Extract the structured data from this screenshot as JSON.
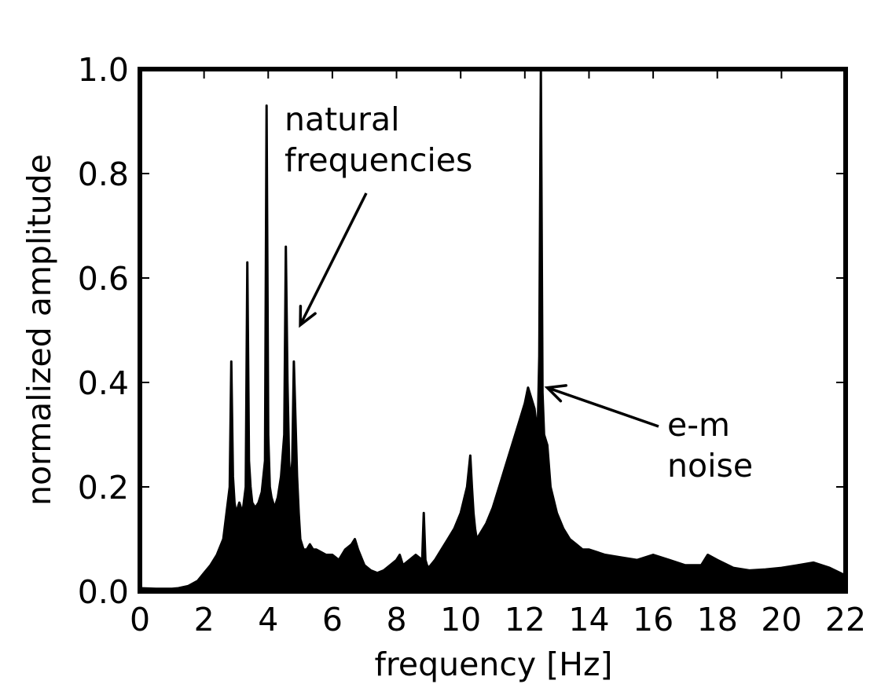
{
  "chart_data": {
    "type": "line",
    "title": "",
    "xlabel": "frequency [Hz]",
    "ylabel": "normalized amplitude",
    "xlim": [
      0,
      22
    ],
    "ylim": [
      0.0,
      1.0
    ],
    "grid": false,
    "xticks": [
      0,
      2,
      4,
      6,
      8,
      10,
      12,
      14,
      16,
      18,
      20,
      22
    ],
    "xtick_labels": [
      "0",
      "2",
      "4",
      "6",
      "8",
      "10",
      "12",
      "14",
      "16",
      "18",
      "20",
      "22"
    ],
    "yticks": [
      0.0,
      0.2,
      0.4,
      0.6,
      0.8,
      1.0
    ],
    "ytick_labels": [
      "0.0",
      "0.2",
      "0.4",
      "0.6",
      "0.8",
      "1.0"
    ],
    "series": [
      {
        "color": "#000000",
        "fill": true,
        "x": [
          0,
          0.5,
          1.0,
          1.2,
          1.5,
          1.8,
          2.0,
          2.2,
          2.4,
          2.6,
          2.7,
          2.8,
          2.85,
          2.9,
          2.95,
          3.0,
          3.1,
          3.2,
          3.3,
          3.35,
          3.4,
          3.45,
          3.5,
          3.6,
          3.7,
          3.8,
          3.9,
          3.95,
          4.0,
          4.05,
          4.1,
          4.2,
          4.3,
          4.4,
          4.5,
          4.55,
          4.6,
          4.65,
          4.7,
          4.75,
          4.8,
          4.9,
          4.95,
          5.0,
          5.05,
          5.1,
          5.2,
          5.3,
          5.4,
          5.5,
          5.8,
          6.0,
          6.2,
          6.4,
          6.6,
          6.7,
          6.8,
          7.0,
          7.2,
          7.4,
          7.6,
          7.8,
          8.0,
          8.1,
          8.2,
          8.4,
          8.6,
          8.8,
          8.85,
          8.9,
          8.95,
          9.0,
          9.2,
          9.4,
          9.6,
          9.8,
          10.0,
          10.2,
          10.3,
          10.35,
          10.4,
          10.45,
          10.5,
          10.6,
          10.8,
          11.0,
          11.2,
          11.4,
          11.6,
          11.8,
          12.0,
          12.1,
          12.2,
          12.3,
          12.4,
          12.45,
          12.5,
          12.55,
          12.6,
          12.7,
          12.8,
          13.0,
          13.2,
          13.4,
          13.6,
          13.8,
          14.0,
          14.5,
          15.0,
          15.5,
          16.0,
          16.5,
          17.0,
          17.5,
          17.7,
          18.0,
          18.5,
          19.0,
          19.5,
          20.0,
          20.5,
          21.0,
          21.5,
          22.0
        ],
        "y": [
          0.006,
          0.005,
          0.005,
          0.006,
          0.01,
          0.02,
          0.035,
          0.05,
          0.07,
          0.1,
          0.15,
          0.2,
          0.44,
          0.22,
          0.17,
          0.15,
          0.17,
          0.15,
          0.2,
          0.63,
          0.25,
          0.2,
          0.17,
          0.16,
          0.17,
          0.19,
          0.25,
          0.93,
          0.3,
          0.2,
          0.18,
          0.16,
          0.18,
          0.22,
          0.3,
          0.66,
          0.4,
          0.25,
          0.2,
          0.25,
          0.44,
          0.22,
          0.15,
          0.1,
          0.09,
          0.08,
          0.08,
          0.09,
          0.08,
          0.08,
          0.07,
          0.07,
          0.06,
          0.08,
          0.09,
          0.1,
          0.08,
          0.05,
          0.04,
          0.035,
          0.04,
          0.05,
          0.06,
          0.07,
          0.05,
          0.06,
          0.07,
          0.06,
          0.15,
          0.06,
          0.05,
          0.045,
          0.06,
          0.08,
          0.1,
          0.12,
          0.15,
          0.2,
          0.26,
          0.2,
          0.15,
          0.12,
          0.1,
          0.11,
          0.13,
          0.16,
          0.2,
          0.24,
          0.28,
          0.32,
          0.36,
          0.39,
          0.37,
          0.35,
          0.3,
          0.45,
          1.0,
          0.38,
          0.3,
          0.28,
          0.2,
          0.15,
          0.12,
          0.1,
          0.09,
          0.08,
          0.08,
          0.07,
          0.065,
          0.06,
          0.07,
          0.06,
          0.05,
          0.05,
          0.07,
          0.06,
          0.045,
          0.04,
          0.042,
          0.045,
          0.05,
          0.055,
          0.045,
          0.03
        ]
      }
    ],
    "annotations": [
      {
        "lines": [
          "natural",
          "frequencies"
        ],
        "arrow_to": [
          5.0,
          0.51
        ]
      },
      {
        "lines": [
          "e-m",
          "noise"
        ],
        "arrow_to": [
          12.7,
          0.39
        ]
      }
    ]
  }
}
